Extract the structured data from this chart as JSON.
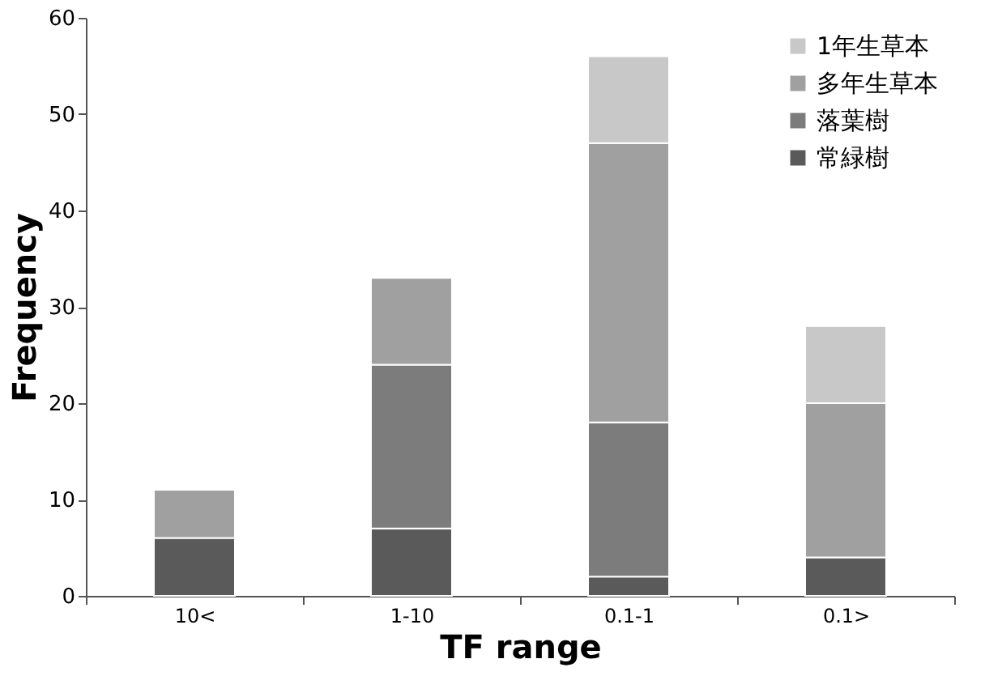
{
  "chart_data": {
    "type": "bar",
    "stacked": true,
    "xlabel": "TF range",
    "ylabel": "Frequency",
    "categories": [
      "10<",
      "1-10",
      "0.1-1",
      "0.1>"
    ],
    "series": [
      {
        "name": "常緑樹",
        "color": "#5a5a5a",
        "values": [
          6,
          7,
          2,
          4
        ]
      },
      {
        "name": "落葉樹",
        "color": "#7c7c7c",
        "values": [
          0,
          17,
          16,
          0
        ]
      },
      {
        "name": "多年生草本",
        "color": "#a0a0a0",
        "values": [
          5,
          9,
          29,
          16
        ]
      },
      {
        "name": "1年生草本",
        "color": "#c8c8c8",
        "values": [
          0,
          0,
          9,
          8
        ]
      }
    ],
    "ylim": [
      0,
      60
    ],
    "yticks": [
      0,
      10,
      20,
      30,
      40,
      50,
      60
    ],
    "grid": false,
    "legend": "top right"
  }
}
